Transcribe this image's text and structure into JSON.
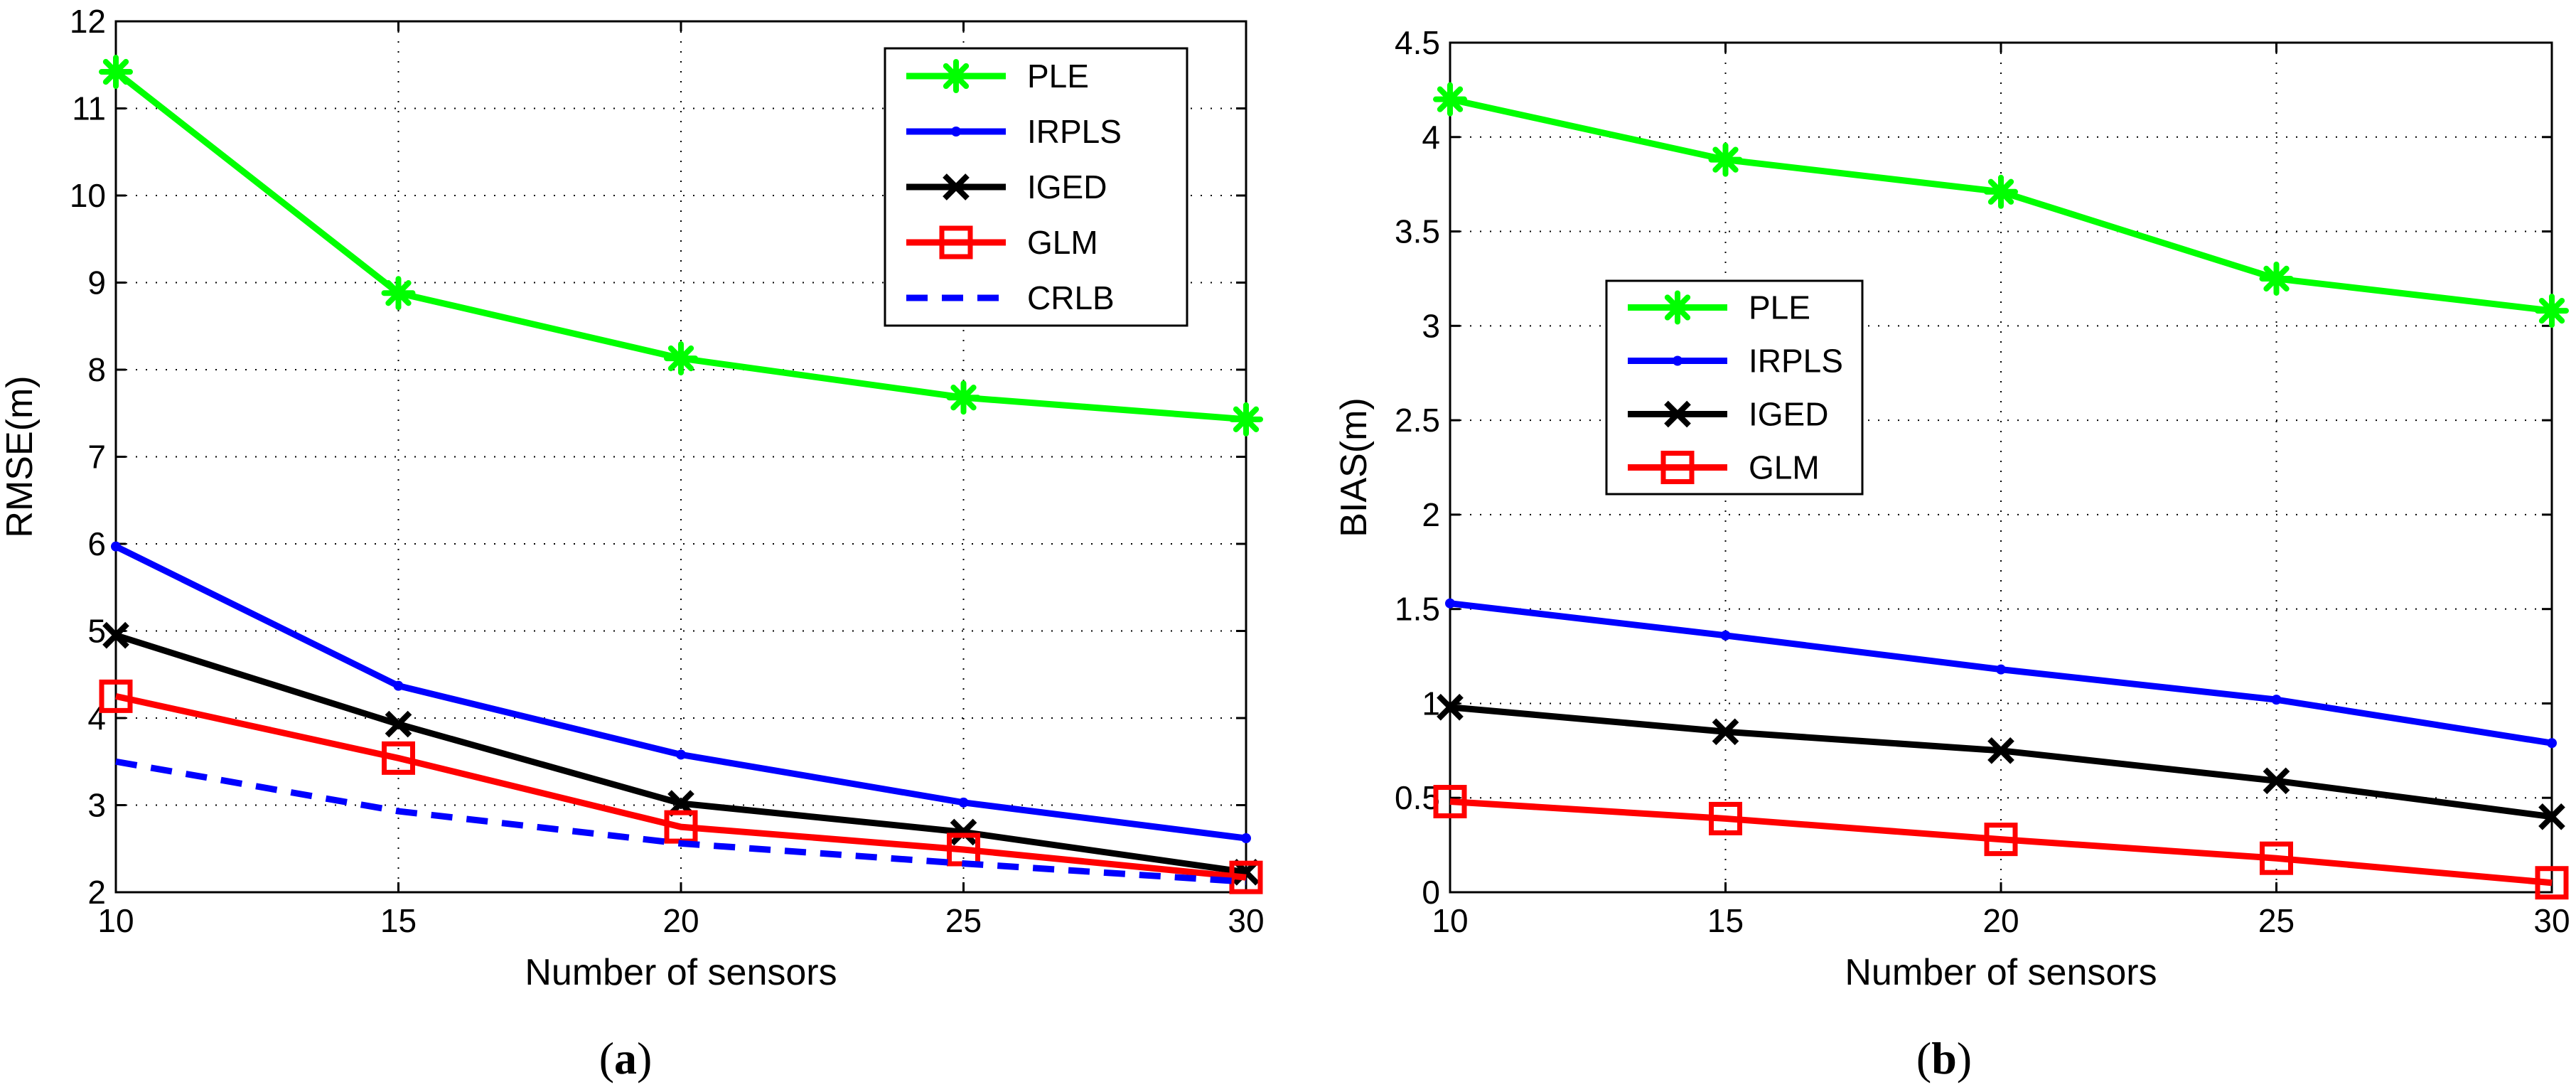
{
  "chart_data": [
    {
      "id": "a",
      "type": "line",
      "xlabel": "Number of sensors",
      "ylabel": "RMSE(m)",
      "caption_open": "(",
      "caption_letter": "a",
      "caption_close": ")",
      "x": [
        10,
        15,
        20,
        25,
        30
      ],
      "xlim": [
        10,
        30
      ],
      "ylim": [
        2,
        12
      ],
      "xticks": [
        "10",
        "15",
        "20",
        "25",
        "30"
      ],
      "yticks": [
        "2",
        "3",
        "4",
        "5",
        "6",
        "7",
        "8",
        "9",
        "10",
        "11",
        "12"
      ],
      "grid": true,
      "legend_position": "top-right",
      "series": [
        {
          "name": "PLE",
          "color": "#00ff00",
          "marker": "asterisk",
          "style": "solid",
          "values": [
            11.42,
            8.88,
            8.13,
            7.68,
            7.43
          ]
        },
        {
          "name": "IRPLS",
          "color": "#0000ff",
          "marker": "dot",
          "style": "solid",
          "values": [
            5.97,
            4.37,
            3.58,
            3.03,
            2.62
          ]
        },
        {
          "name": "IGED",
          "color": "#000000",
          "marker": "x",
          "style": "solid",
          "values": [
            4.95,
            3.93,
            3.02,
            2.69,
            2.23
          ]
        },
        {
          "name": "GLM",
          "color": "#ff0000",
          "marker": "square",
          "style": "solid",
          "values": [
            4.25,
            3.54,
            2.75,
            2.49,
            2.17
          ]
        },
        {
          "name": "CRLB",
          "color": "#0000ff",
          "marker": "none",
          "style": "dashed",
          "values": [
            3.5,
            2.93,
            2.56,
            2.33,
            2.12
          ]
        }
      ]
    },
    {
      "id": "b",
      "type": "line",
      "xlabel": "Number of sensors",
      "ylabel": "BIAS(m)",
      "caption_open": "(",
      "caption_letter": "b",
      "caption_close": ")",
      "x": [
        10,
        15,
        20,
        25,
        30
      ],
      "xlim": [
        10,
        30
      ],
      "ylim": [
        0,
        4.5
      ],
      "xticks": [
        "10",
        "15",
        "20",
        "25",
        "30"
      ],
      "yticks": [
        "0",
        "0.5",
        "1",
        "1.5",
        "2",
        "2.5",
        "3",
        "3.5",
        "4",
        "4.5"
      ],
      "grid": true,
      "legend_position": "upper-left",
      "series": [
        {
          "name": "PLE",
          "color": "#00ff00",
          "marker": "asterisk",
          "style": "solid",
          "values": [
            4.2,
            3.88,
            3.71,
            3.25,
            3.08
          ]
        },
        {
          "name": "IRPLS",
          "color": "#0000ff",
          "marker": "dot",
          "style": "solid",
          "values": [
            1.53,
            1.36,
            1.18,
            1.02,
            0.79
          ]
        },
        {
          "name": "IGED",
          "color": "#000000",
          "marker": "x",
          "style": "solid",
          "values": [
            0.98,
            0.85,
            0.75,
            0.59,
            0.4
          ]
        },
        {
          "name": "GLM",
          "color": "#ff0000",
          "marker": "square",
          "style": "solid",
          "values": [
            0.48,
            0.39,
            0.28,
            0.18,
            0.05
          ]
        }
      ]
    }
  ]
}
